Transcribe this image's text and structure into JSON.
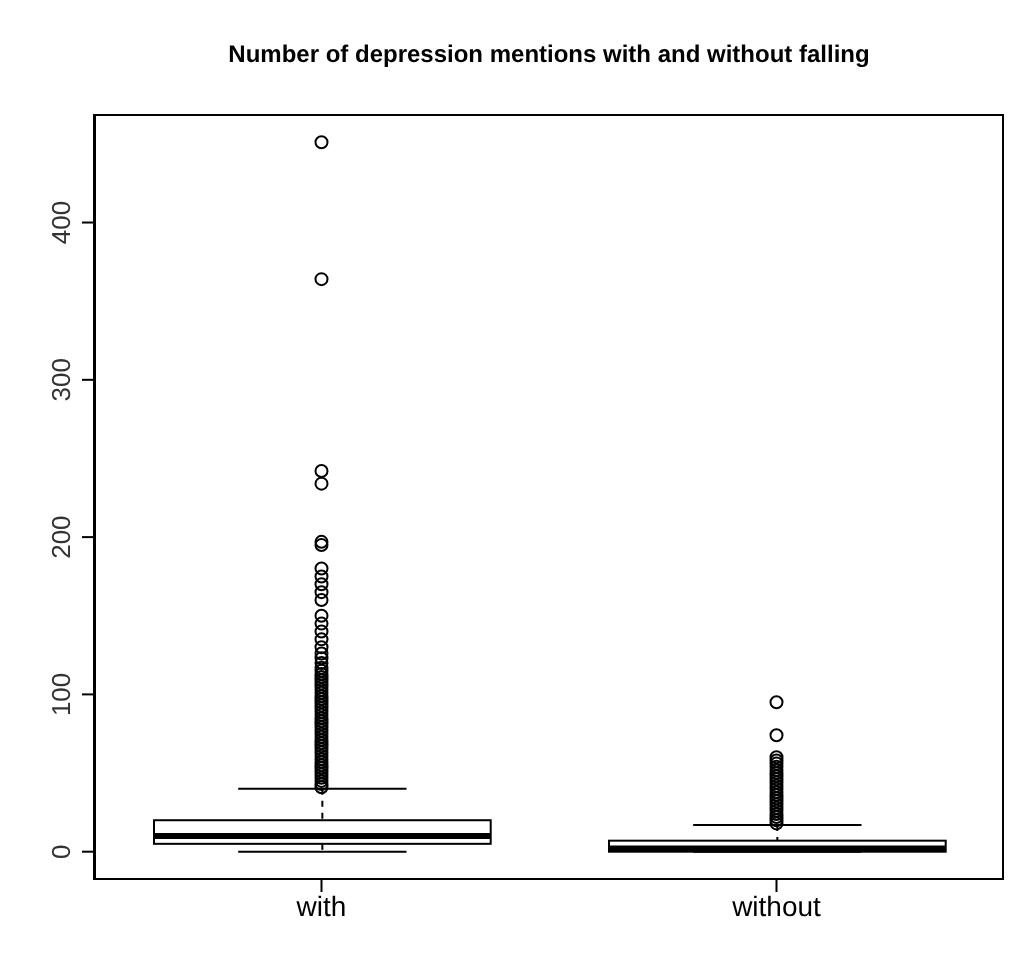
{
  "chart_data": {
    "type": "box",
    "title": "Number of depression mentions with and without falling",
    "categories": [
      "with",
      "without"
    ],
    "boxes": [
      {
        "low": 0,
        "q1": 5,
        "median": 10,
        "q3": 20,
        "high": 40,
        "outliers": [
          41,
          43,
          45,
          47,
          49,
          51,
          53,
          55,
          57,
          59,
          61,
          63,
          65,
          67,
          69,
          71,
          73,
          75,
          77,
          79,
          81,
          83,
          85,
          87,
          89,
          91,
          93,
          95,
          97,
          99,
          101,
          103,
          105,
          107,
          109,
          111,
          113,
          115,
          117,
          120,
          123,
          126,
          130,
          135,
          140,
          145,
          150,
          160,
          165,
          170,
          175,
          180,
          195,
          197,
          234,
          242,
          364,
          451
        ]
      },
      {
        "low": 0,
        "q1": 0,
        "median": 2,
        "q3": 7,
        "high": 17,
        "outliers": [
          18,
          20,
          22,
          24,
          26,
          28,
          30,
          32,
          34,
          36,
          38,
          40,
          42,
          44,
          46,
          48,
          50,
          52,
          54,
          56,
          58,
          60,
          74,
          95
        ]
      }
    ],
    "ylim": [
      -18,
      469
    ],
    "yticks": [
      0,
      100,
      200,
      300,
      400
    ]
  }
}
